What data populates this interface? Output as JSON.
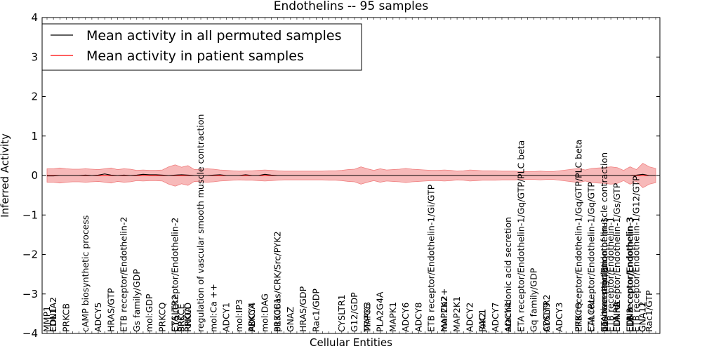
{
  "chart_data": {
    "type": "line",
    "title": "Endothelins -- 95 samples",
    "xlabel": "Cellular Entities",
    "ylabel": "Inferred Activity",
    "ylim": [
      -4,
      4
    ],
    "yticks": [
      -4,
      -3,
      -2,
      -1,
      0,
      1,
      2,
      3,
      4
    ],
    "grid": false,
    "legend_position": "top-left",
    "series": [
      {
        "name": "Mean activity in all permuted samples",
        "color": "#000000",
        "values": [
          -0.01,
          -0.01,
          0.0,
          0.0,
          0.0,
          0.0,
          0.01,
          0.0,
          0.01,
          0.04,
          0.01,
          0.0,
          0.01,
          0.0,
          0.01,
          0.03,
          0.02,
          0.02,
          0.01,
          0.0,
          0.01,
          0.02,
          0.01,
          0.0,
          0.0,
          0.0,
          0.01,
          0.02,
          0.0,
          0.0,
          0.0,
          0.02,
          0.0,
          0.0,
          0.03,
          0.01,
          0.0,
          0.0,
          0.0,
          0.0,
          0.0,
          0.0,
          0.0,
          0.0,
          0.0,
          0.0,
          0.0,
          0.0,
          0.0,
          0.0,
          0.0,
          0.0,
          0.0,
          0.0,
          0.0,
          0.0,
          0.0,
          0.0,
          0.0,
          0.0,
          0.0,
          0.0,
          0.0,
          0.0,
          0.0,
          0.0,
          0.0,
          0.0,
          0.0,
          0.0,
          0.0,
          0.0,
          0.0,
          0.0,
          0.0,
          0.0,
          0.0,
          0.0,
          0.0,
          0.0,
          0.0,
          0.0,
          0.0,
          0.0,
          0.0,
          0.0,
          0.0,
          0.0,
          0.0,
          0.0,
          0.0,
          0.0,
          0.01,
          0.03,
          0.0,
          0.0
        ]
      },
      {
        "name": "Mean activity in patient samples",
        "color": "#ff0000",
        "band_color": "#f08080",
        "values": [
          0.0,
          0.0,
          0.0,
          0.0,
          0.0,
          0.0,
          0.0,
          0.0,
          0.0,
          0.0,
          0.0,
          0.0,
          0.0,
          0.0,
          0.0,
          0.0,
          0.0,
          0.0,
          0.0,
          0.0,
          0.0,
          0.0,
          0.0,
          0.0,
          0.0,
          0.0,
          0.0,
          0.0,
          0.0,
          0.0,
          0.0,
          0.0,
          0.0,
          0.0,
          0.0,
          0.0,
          0.0,
          0.0,
          0.0,
          0.0,
          0.0,
          0.0,
          0.0,
          0.0,
          0.0,
          0.0,
          0.0,
          0.0,
          0.0,
          0.0,
          0.0,
          0.0,
          0.0,
          0.0,
          0.0,
          0.0,
          0.0,
          0.0,
          0.0,
          0.0,
          0.0,
          0.0,
          0.0,
          0.0,
          0.0,
          0.0,
          0.0,
          0.0,
          0.0,
          0.0,
          0.0,
          0.0,
          0.0,
          0.0,
          0.0,
          0.0,
          0.0,
          0.0,
          0.0,
          0.0,
          0.0,
          0.0,
          0.0,
          0.0,
          0.0,
          0.0,
          0.0,
          0.0,
          0.0,
          0.0,
          0.0,
          0.0,
          0.0,
          0.0,
          0.0,
          0.0
        ],
        "band_upper": [
          0.17,
          0.17,
          0.19,
          0.17,
          0.16,
          0.16,
          0.17,
          0.16,
          0.15,
          0.17,
          0.19,
          0.15,
          0.17,
          0.16,
          0.13,
          0.14,
          0.13,
          0.13,
          0.14,
          0.22,
          0.27,
          0.21,
          0.25,
          0.15,
          0.16,
          0.17,
          0.16,
          0.14,
          0.13,
          0.12,
          0.11,
          0.12,
          0.12,
          0.13,
          0.14,
          0.13,
          0.12,
          0.11,
          0.11,
          0.11,
          0.11,
          0.11,
          0.11,
          0.11,
          0.12,
          0.12,
          0.13,
          0.15,
          0.16,
          0.22,
          0.17,
          0.13,
          0.17,
          0.14,
          0.15,
          0.16,
          0.18,
          0.16,
          0.15,
          0.14,
          0.13,
          0.13,
          0.14,
          0.13,
          0.11,
          0.12,
          0.14,
          0.13,
          0.12,
          0.12,
          0.12,
          0.11,
          0.11,
          0.11,
          0.1,
          0.1,
          0.1,
          0.11,
          0.1,
          0.1,
          0.12,
          0.14,
          0.16,
          0.18,
          0.14,
          0.18,
          0.19,
          0.2,
          0.22,
          0.2,
          0.13,
          0.22,
          0.15,
          0.31,
          0.22,
          0.18
        ],
        "band_lower": [
          -0.17,
          -0.17,
          -0.19,
          -0.17,
          -0.16,
          -0.16,
          -0.17,
          -0.16,
          -0.15,
          -0.17,
          -0.19,
          -0.15,
          -0.17,
          -0.16,
          -0.13,
          -0.14,
          -0.13,
          -0.13,
          -0.14,
          -0.22,
          -0.27,
          -0.21,
          -0.25,
          -0.15,
          -0.16,
          -0.17,
          -0.16,
          -0.14,
          -0.13,
          -0.12,
          -0.11,
          -0.12,
          -0.12,
          -0.13,
          -0.14,
          -0.13,
          -0.12,
          -0.11,
          -0.11,
          -0.11,
          -0.11,
          -0.11,
          -0.11,
          -0.11,
          -0.12,
          -0.12,
          -0.13,
          -0.15,
          -0.16,
          -0.22,
          -0.17,
          -0.13,
          -0.17,
          -0.14,
          -0.15,
          -0.16,
          -0.18,
          -0.16,
          -0.15,
          -0.14,
          -0.13,
          -0.13,
          -0.14,
          -0.13,
          -0.11,
          -0.12,
          -0.14,
          -0.13,
          -0.12,
          -0.12,
          -0.12,
          -0.11,
          -0.11,
          -0.11,
          -0.1,
          -0.1,
          -0.1,
          -0.11,
          -0.1,
          -0.1,
          -0.12,
          -0.14,
          -0.16,
          -0.18,
          -0.14,
          -0.18,
          -0.19,
          -0.2,
          -0.22,
          -0.2,
          -0.13,
          -0.22,
          -0.15,
          -0.31,
          -0.22,
          -0.18
        ]
      }
    ],
    "x_labels": [
      {
        "i": 0,
        "text": "MMP1"
      },
      {
        "i": 1,
        "text": "EDN1"
      },
      {
        "i": 1,
        "text": "COL1A2"
      },
      {
        "i": 3,
        "text": "PRKCB"
      },
      {
        "i": 6,
        "text": "cAMP biosynthetic process"
      },
      {
        "i": 8,
        "text": "ADCY5"
      },
      {
        "i": 10,
        "text": "HRAS/GTP"
      },
      {
        "i": 12,
        "text": "ETB receptor/Endothelin-2"
      },
      {
        "i": 14,
        "text": "Gs family/GDP"
      },
      {
        "i": 16,
        "text": "mol:GDP"
      },
      {
        "i": 18,
        "text": "PRKCQ"
      },
      {
        "i": 20,
        "text": "ETA receptor/Endothelin-2"
      },
      {
        "i": 20,
        "text": "CYSLTR2"
      },
      {
        "i": 21,
        "text": "PRKCE"
      },
      {
        "i": 21,
        "text": "SRC"
      },
      {
        "i": 22,
        "text": "RHOA"
      },
      {
        "i": 22,
        "text": "PRKCD"
      },
      {
        "i": 24,
        "text": "regulation of vascular smooth muscle contraction"
      },
      {
        "i": 26,
        "text": "mol:Ca ++"
      },
      {
        "i": 28,
        "text": "ADCY1"
      },
      {
        "i": 30,
        "text": "mol:IP3"
      },
      {
        "i": 32,
        "text": "PRKCA"
      },
      {
        "i": 32,
        "text": "ADCY4"
      },
      {
        "i": 34,
        "text": "mol:DAG"
      },
      {
        "i": 36,
        "text": "PRKCB1"
      },
      {
        "i": 36,
        "text": "p130Cas/CRK/Src/PYK2"
      },
      {
        "i": 38,
        "text": "GNAZ"
      },
      {
        "i": 40,
        "text": "HRAS/GDP"
      },
      {
        "i": 42,
        "text": "Rac1/GDP"
      },
      {
        "i": 46,
        "text": "CYSLTR1"
      },
      {
        "i": 48,
        "text": "G12/GDP"
      },
      {
        "i": 50,
        "text": "MAPK3"
      },
      {
        "i": 50,
        "text": "TRPC6"
      },
      {
        "i": 52,
        "text": "PLA2G4A"
      },
      {
        "i": 54,
        "text": "MAPK1"
      },
      {
        "i": 56,
        "text": "ADCY6"
      },
      {
        "i": 58,
        "text": "ADCY8"
      },
      {
        "i": 60,
        "text": "ETB receptor/Endothelin-1/Gi/GTP"
      },
      {
        "i": 62,
        "text": "MAP2K2"
      },
      {
        "i": 62,
        "text": "mol:Ca2+"
      },
      {
        "i": 64,
        "text": "MAP2K1"
      },
      {
        "i": 66,
        "text": "ADCY2"
      },
      {
        "i": 68,
        "text": "RAC1"
      },
      {
        "i": 68,
        "text": "JAK2"
      },
      {
        "i": 70,
        "text": "ADCY7"
      },
      {
        "i": 72,
        "text": "arachidonic acid secretion"
      },
      {
        "i": 72,
        "text": "ADCY4"
      },
      {
        "i": 74,
        "text": "ETA receptor/Endothelin-1/Gq/GTP/PLC beta"
      },
      {
        "i": 76,
        "text": "Gq family/GDP"
      },
      {
        "i": 78,
        "text": "CYSLTR2"
      },
      {
        "i": 78,
        "text": "ADCY9"
      },
      {
        "i": 80,
        "text": "ADCY3"
      },
      {
        "i": 83,
        "text": "ETB receptor/Endothelin-1/Gq/GTP/PLC beta"
      },
      {
        "i": 83,
        "text": "PRKCQ"
      },
      {
        "i": 85,
        "text": "ETA receptor/Endothelin-1/Gq/GTP"
      },
      {
        "i": 85,
        "text": "CALCRL"
      },
      {
        "i": 87,
        "text": "ETA receptor/Endothelin-1"
      },
      {
        "i": 87,
        "text": "positive regulation of muscle contraction"
      },
      {
        "i": 87,
        "text": "vasoconstriction"
      },
      {
        "i": 88,
        "text": "ETB receptor/Endothelin-1"
      },
      {
        "i": 89,
        "text": "ETA receptor/Endothelin-1/Gs/GTP"
      },
      {
        "i": 89,
        "text": "EDNRA"
      },
      {
        "i": 89,
        "text": "EDNRB"
      },
      {
        "i": 91,
        "text": "EDN3"
      },
      {
        "i": 91,
        "text": "EDN2"
      },
      {
        "i": 91,
        "text": "ETB receptor/Endothelin-3"
      },
      {
        "i": 91,
        "text": "ETA receptor/Endothelin-3"
      },
      {
        "i": 92,
        "text": "ETB receptor/Endothelin-1/G12/GTP"
      },
      {
        "i": 93,
        "text": "GNA12"
      },
      {
        "i": 93,
        "text": "GNA11"
      },
      {
        "i": 94,
        "text": "Rac1/GTP"
      }
    ]
  }
}
